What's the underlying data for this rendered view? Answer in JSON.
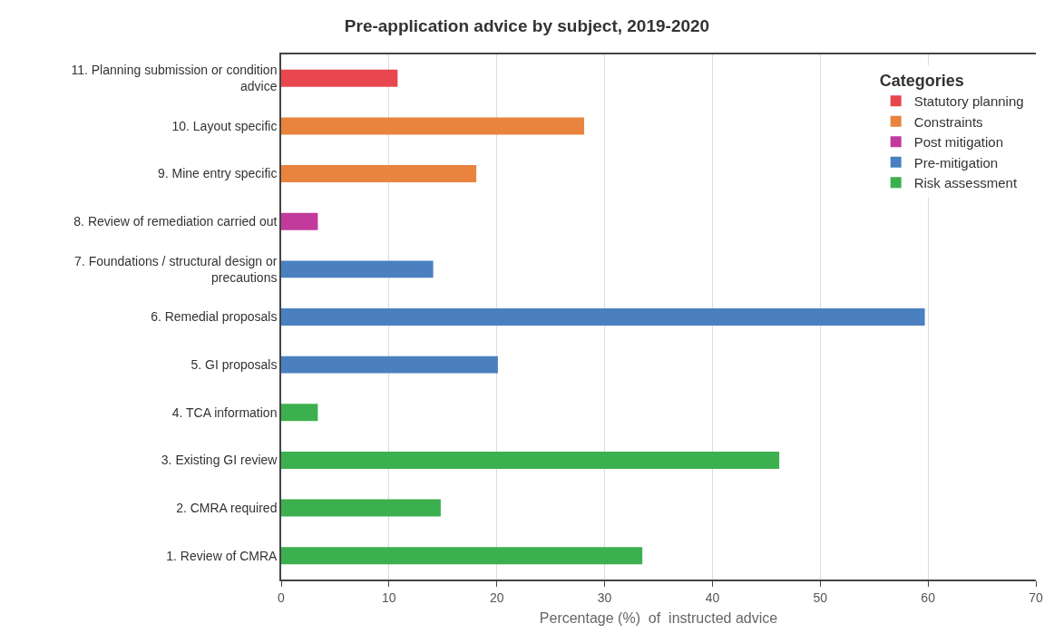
{
  "chart_data": {
    "type": "bar",
    "orientation": "horizontal",
    "title": "Pre-application advice by subject, 2019-2020",
    "xlabel": "Percentage (%)  of  instructed advice",
    "legend_title": "Categories",
    "categories": [
      "11. Planning submission or condition advice",
      "10. Layout specific",
      "9. Mine entry specific",
      "8. Review of remediation carried out",
      "7. Foundations / structural design or precautions",
      "6. Remedial proposals",
      "5. GI proposals",
      "4. TCA information",
      "3. Existing GI review",
      "2. CMRA required",
      "1. Review of CMRA"
    ],
    "series": [
      {
        "name": "Statutory planning",
        "color": "#e8474f",
        "values": [
          10.8,
          null,
          null,
          null,
          null,
          null,
          null,
          null,
          null,
          null,
          null
        ]
      },
      {
        "name": "Constraints",
        "color": "#e8843e",
        "values": [
          null,
          28.1,
          18.1,
          null,
          null,
          null,
          null,
          null,
          null,
          null,
          null
        ]
      },
      {
        "name": "Post mitigation",
        "color": "#c23a9c",
        "values": [
          null,
          null,
          null,
          3.4,
          null,
          null,
          null,
          null,
          null,
          null,
          null
        ]
      },
      {
        "name": "Pre-mitigation",
        "color": "#4a80c0",
        "values": [
          null,
          null,
          null,
          null,
          14.1,
          59.7,
          20.1,
          null,
          null,
          null,
          null
        ]
      },
      {
        "name": "Risk assessment",
        "color": "#3cb04e",
        "values": [
          null,
          null,
          null,
          null,
          null,
          null,
          null,
          3.4,
          46.2,
          14.8,
          33.5
        ]
      }
    ],
    "xlim": [
      0,
      70
    ],
    "xticks": [
      0,
      10,
      20,
      30,
      40,
      50,
      60,
      70
    ],
    "grid": "x",
    "legend": "top right"
  }
}
